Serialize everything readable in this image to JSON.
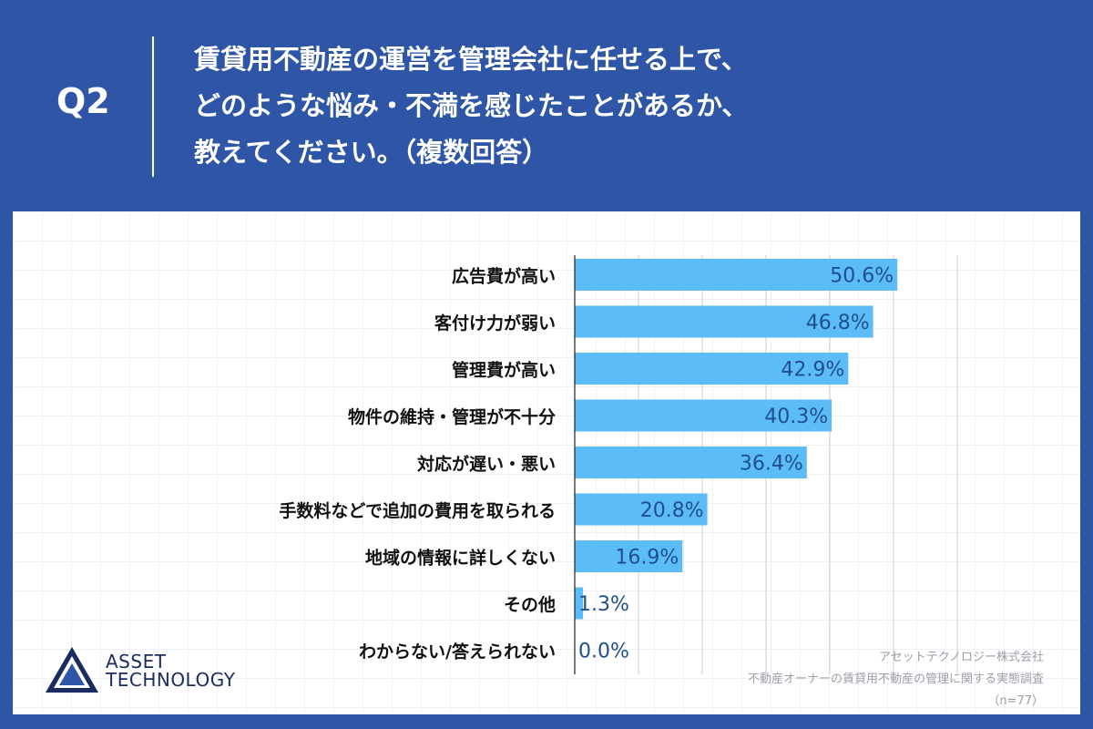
{
  "header": {
    "q_label": "Q2",
    "question_lines": [
      "賃貸用不動産の運営を管理会社に任せる上で、",
      "どのような悩み・不満を感じたことがあるか、",
      "教えてください。（複数回答）"
    ]
  },
  "chart_data": {
    "type": "bar",
    "orientation": "horizontal",
    "categories": [
      "広告費が高い",
      "客付け力が弱い",
      "管理費が高い",
      "物件の維持・管理が不十分",
      "対応が遅い・悪い",
      "手数料などで追加の費用を取られる",
      "地域の情報に詳しくない",
      "その他",
      "わからない/答えられない"
    ],
    "values": [
      50.6,
      46.8,
      42.9,
      40.3,
      36.4,
      20.8,
      16.9,
      1.3,
      0.0
    ],
    "data_labels": [
      "50.6%",
      "46.8%",
      "42.9%",
      "40.3%",
      "36.4%",
      "20.8%",
      "16.9%",
      "1.3%",
      "0.0%"
    ],
    "xlim": [
      0,
      60
    ],
    "grid": true,
    "bar_color": "#5bbcf7",
    "label_color": "#1f4f8c"
  },
  "logo": {
    "line1": "ASSET",
    "line2": "TECHNOLOGY"
  },
  "footer": {
    "company": "アセットテクノロジー株式会社",
    "survey": "不動産オーナーの賃貸用不動産の管理に関する実態調査",
    "n": "（n=77）"
  },
  "colors": {
    "header_bg": "#2f56a6",
    "logo_dark": "#1a2b5f",
    "logo_blue": "#2f56a6"
  }
}
